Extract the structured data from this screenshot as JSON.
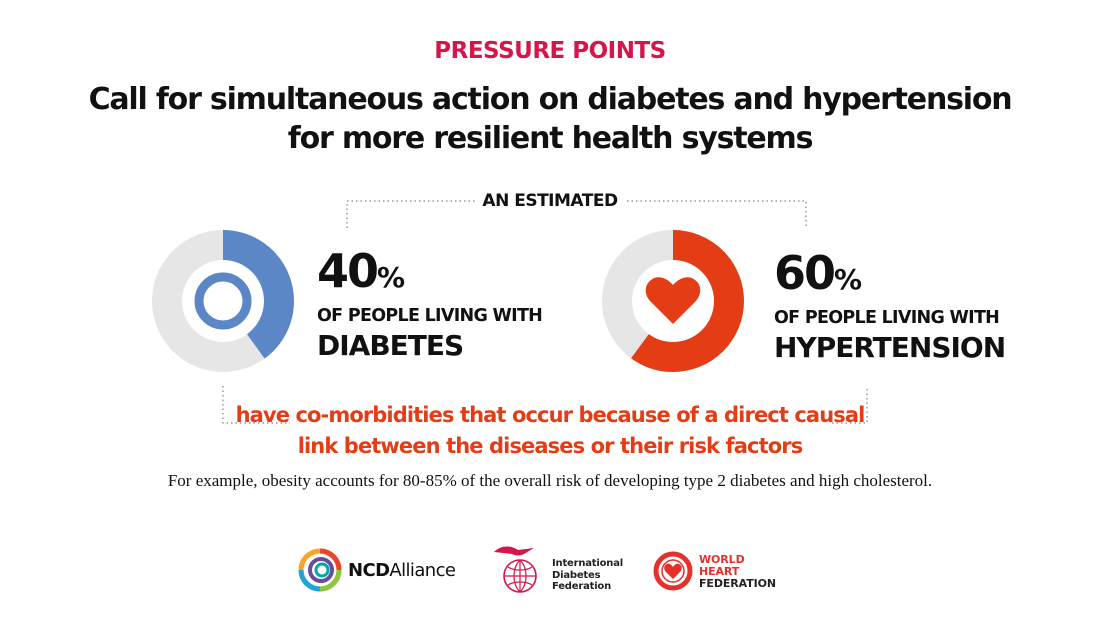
{
  "header": {
    "kicker": "PRESSURE POINTS",
    "title_line1": "Call for simultaneous action on diabetes and hypertension",
    "title_line2": "for more resilient health systems"
  },
  "estimated_label": "AN ESTIMATED",
  "stats": [
    {
      "value": 40,
      "number": "40",
      "unit": "%",
      "lead": "OF PEOPLE LIVING WITH",
      "disease": "DIABETES",
      "icon": "blue-circle-icon",
      "fill_color": "#5b87c7",
      "track_color": "#e6e6e6"
    },
    {
      "value": 60,
      "number": "60",
      "unit": "%",
      "lead": "OF PEOPLE LIVING WITH",
      "disease": "HYPERTENSION",
      "icon": "heart-icon",
      "fill_color": "#e43d16",
      "track_color": "#e6e6e6"
    }
  ],
  "comorbidity_line1": "have co-morbidities that occur because of a direct causal",
  "comorbidity_line2": "link between the diseases or their risk factors",
  "example_text": "For example, obesity accounts for 80-85% of the overall risk of developing type 2 diabetes and high cholesterol.",
  "logos": {
    "ncd": {
      "bold": "NCD",
      "rest": "Alliance"
    },
    "idf": {
      "line1": "International",
      "line2": "Diabetes",
      "line3": "Federation"
    },
    "whf": {
      "line1": "WORLD",
      "line2": "HEART",
      "line3": "FEDERATION"
    }
  },
  "colors": {
    "kicker": "#d4164a",
    "accent_red": "#e43d16",
    "accent_blue": "#5b87c7",
    "track_gray": "#e6e6e6",
    "dotted_line": "#9a9a9a"
  }
}
